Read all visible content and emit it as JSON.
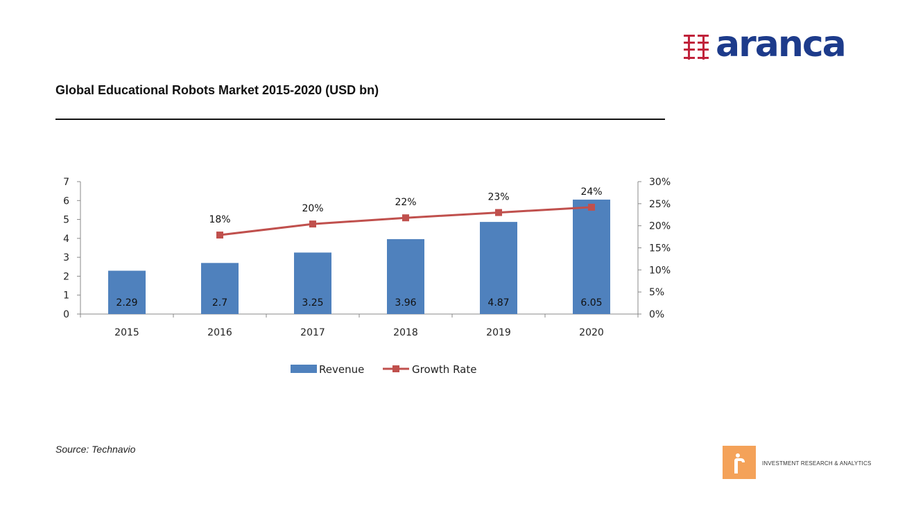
{
  "brand": {
    "name": "aranca",
    "tagline": "INVESTMENT RESEARCH & ANALYTICS",
    "primary_color": "#1d3b8b",
    "mark_color": "#c0223b",
    "badge_color": "#f4a259"
  },
  "page": {
    "title": "Global Educational Robots Market 2015-2020 (USD bn)",
    "source": "Source: Technavio"
  },
  "chart_data": {
    "type": "bar",
    "categories": [
      "2015",
      "2016",
      "2017",
      "2018",
      "2019",
      "2020"
    ],
    "series": [
      {
        "name": "Revenue",
        "type": "bar",
        "axis": "left",
        "color": "#4f81bd",
        "values": [
          2.29,
          2.7,
          3.25,
          3.96,
          4.87,
          6.05
        ],
        "labels": [
          "2.29",
          "2.7",
          "3.25",
          "3.96",
          "4.87",
          "6.05"
        ]
      },
      {
        "name": "Growth Rate",
        "type": "line",
        "axis": "right",
        "color": "#c0504d",
        "values": [
          null,
          17.9,
          20.4,
          21.8,
          23.0,
          24.2
        ],
        "labels": [
          "",
          "18%",
          "20%",
          "22%",
          "23%",
          "24%"
        ]
      }
    ],
    "y_left": {
      "min": 0,
      "max": 7,
      "ticks": [
        "0",
        "1",
        "2",
        "3",
        "4",
        "5",
        "6",
        "7"
      ]
    },
    "y_right": {
      "min": 0,
      "max": 30,
      "ticks": [
        "0%",
        "5%",
        "10%",
        "15%",
        "20%",
        "25%",
        "30%"
      ]
    },
    "title": "",
    "xlabel": "",
    "ylabel": "",
    "legend": "bottom",
    "grid": false
  }
}
